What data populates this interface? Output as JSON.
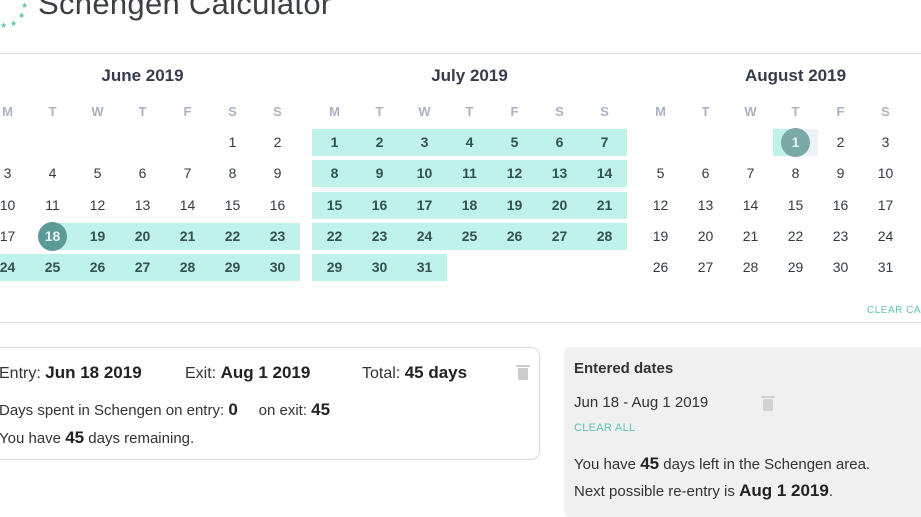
{
  "header": {
    "title": "Schengen Calculator",
    "logo_icon": "eu-stars-icon"
  },
  "calendar": {
    "prev_icon": "chevron-left-icon",
    "weekdays": [
      "M",
      "T",
      "W",
      "T",
      "F",
      "S",
      "S"
    ],
    "months": [
      {
        "title": "June 2019",
        "start_weekday": 5,
        "days": 30,
        "highlight": [
          18,
          30
        ],
        "entry_day": 18
      },
      {
        "title": "July 2019",
        "start_weekday": 0,
        "days": 31,
        "highlight": [
          1,
          31
        ]
      },
      {
        "title": "August 2019",
        "start_weekday": 3,
        "days": 31,
        "highlight": [
          1,
          1
        ],
        "exit_day": 1
      }
    ],
    "clear_label": "CLEAR CALENDAR"
  },
  "colors": {
    "highlight": "#bff2e8",
    "entry_circle": "#5b9a97",
    "exit_circle": "#7aa9a8",
    "accent": "#5fc4b2"
  },
  "trip": {
    "entry_label": "Entry:",
    "entry_value": "Jun 18 2019",
    "exit_label": "Exit:",
    "exit_value": "Aug 1 2019",
    "total_label": "Total:",
    "total_value": "45 days",
    "spent_label": "Days spent in Schengen on entry:",
    "spent_entry": "0",
    "on_exit_label": "on exit:",
    "spent_exit": "45",
    "remaining_pre": "You have",
    "remaining_value": "45",
    "remaining_post": "days remaining."
  },
  "panel": {
    "title": "Entered dates",
    "range": "Jun 18 - Aug 1 2019",
    "clear_all": "CLEAR ALL",
    "left_pre": "You have",
    "left_value": "45",
    "left_post": "days left in the Schengen area.",
    "reentry_pre": "Next possible re-entry is",
    "reentry_value": "Aug 1 2019",
    "reentry_post": "."
  }
}
